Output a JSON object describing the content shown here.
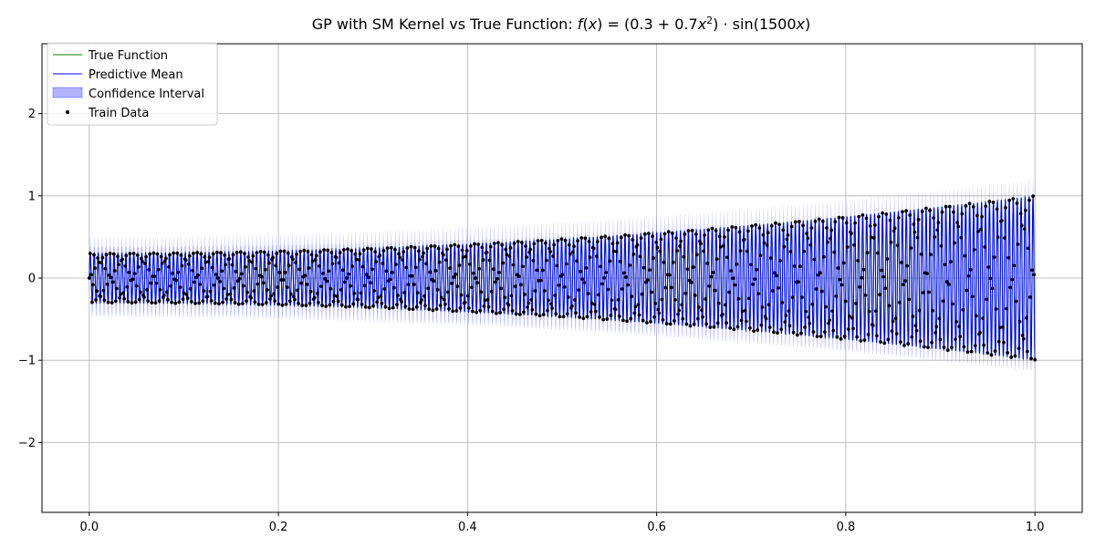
{
  "chart_data": {
    "type": "line",
    "title": "GP with SM Kernel vs True Function: f(x) = (0.3 + 0.7x²) · sin(1500x)",
    "xlabel": "",
    "ylabel": "",
    "xlim": [
      -0.05,
      1.05
    ],
    "ylim": [
      -2.85,
      2.85
    ],
    "xticks": [
      0.0,
      0.2,
      0.4,
      0.6,
      0.8,
      1.0
    ],
    "xtick_labels": [
      "0.0",
      "0.2",
      "0.4",
      "0.6",
      "0.8",
      "1.0"
    ],
    "yticks": [
      -2,
      -1,
      0,
      1,
      2
    ],
    "ytick_labels": [
      "−2",
      "−1",
      "0",
      "1",
      "2"
    ],
    "grid": true,
    "legend_position": "top-left",
    "function": {
      "amp_const": 0.3,
      "amp_quad": 0.7,
      "frequency": 1500,
      "x_range": [
        0.0,
        1.0
      ]
    },
    "train_data": {
      "count": 1000,
      "x_range": [
        0.0,
        1.0
      ]
    },
    "confidence_halfwidth": 0.15,
    "series": [
      {
        "name": "True Function",
        "kind": "line",
        "color": "#008000"
      },
      {
        "name": "Predictive Mean",
        "kind": "line",
        "color": "#0000ff"
      },
      {
        "name": "Confidence Interval",
        "kind": "band",
        "color": "#0000ff",
        "opacity": 0.3
      },
      {
        "name": "Train Data",
        "kind": "marker",
        "color": "#000000"
      }
    ]
  }
}
